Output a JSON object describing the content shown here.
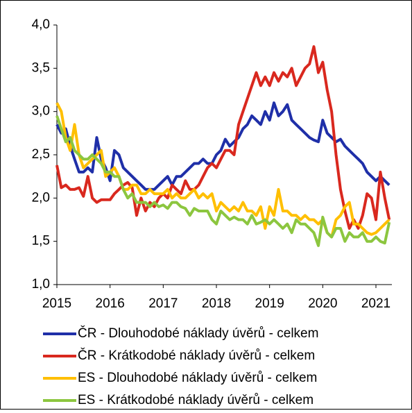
{
  "chart_data": {
    "type": "line",
    "x": [
      2015,
      2015.083,
      2015.167,
      2015.25,
      2015.333,
      2015.417,
      2015.5,
      2015.583,
      2015.667,
      2015.75,
      2015.833,
      2015.917,
      2016,
      2016.083,
      2016.167,
      2016.25,
      2016.333,
      2016.417,
      2016.5,
      2016.583,
      2016.667,
      2016.75,
      2016.833,
      2016.917,
      2017,
      2017.083,
      2017.167,
      2017.25,
      2017.333,
      2017.417,
      2017.5,
      2017.583,
      2017.667,
      2017.75,
      2017.833,
      2017.917,
      2018,
      2018.083,
      2018.167,
      2018.25,
      2018.333,
      2018.417,
      2018.5,
      2018.583,
      2018.667,
      2018.75,
      2018.833,
      2018.917,
      2019,
      2019.083,
      2019.167,
      2019.25,
      2019.333,
      2019.417,
      2019.5,
      2019.583,
      2019.667,
      2019.75,
      2019.833,
      2019.917,
      2020,
      2020.083,
      2020.167,
      2020.25,
      2020.333,
      2020.417,
      2020.5,
      2020.583,
      2020.667,
      2020.75,
      2020.833,
      2020.917,
      2021,
      2021.083,
      2021.167,
      2021.25
    ],
    "series": [
      {
        "name": "ČR - Dlouhodobé náklady úvěrů - celkem",
        "color": "#1f2fa8",
        "values": [
          2.85,
          2.75,
          2.8,
          2.6,
          2.45,
          2.3,
          2.3,
          2.35,
          2.3,
          2.7,
          2.45,
          2.35,
          2.2,
          2.55,
          2.5,
          2.35,
          2.3,
          2.25,
          2.2,
          2.15,
          2.1,
          2.1,
          2.1,
          2.15,
          2.2,
          2.25,
          2.15,
          2.25,
          2.25,
          2.3,
          2.35,
          2.4,
          2.4,
          2.45,
          2.4,
          2.4,
          2.5,
          2.55,
          2.68,
          2.6,
          2.65,
          2.7,
          2.8,
          2.85,
          2.95,
          2.9,
          2.85,
          3.0,
          2.9,
          3.1,
          2.95,
          3.0,
          3.08,
          2.9,
          2.85,
          2.8,
          2.75,
          2.7,
          2.67,
          2.65,
          2.9,
          2.75,
          2.7,
          2.65,
          2.68,
          2.6,
          2.55,
          2.5,
          2.45,
          2.4,
          2.3,
          2.25,
          2.2,
          2.25,
          2.2,
          2.15
        ]
      },
      {
        "name": "ČR - Krátkodobé náklady úvěrů - celkem",
        "color": "#d9281e",
        "values": [
          2.38,
          2.12,
          2.15,
          2.1,
          2.1,
          2.12,
          2.02,
          2.25,
          2.0,
          1.95,
          1.98,
          1.98,
          1.98,
          2.05,
          2.1,
          2.15,
          2.18,
          2.12,
          1.8,
          2.0,
          1.85,
          1.95,
          1.9,
          2.0,
          2.05,
          2.0,
          2.15,
          2.1,
          2.05,
          2.2,
          2.1,
          2.1,
          2.15,
          2.25,
          2.35,
          2.4,
          2.35,
          2.45,
          2.55,
          2.55,
          2.5,
          2.85,
          3.0,
          3.15,
          3.3,
          3.45,
          3.3,
          3.4,
          3.3,
          3.45,
          3.35,
          3.45,
          3.4,
          3.5,
          3.3,
          3.4,
          3.5,
          3.55,
          3.75,
          3.45,
          3.57,
          3.25,
          3.0,
          2.5,
          2.1,
          1.85,
          1.65,
          1.75,
          1.65,
          1.8,
          2.05,
          2.0,
          1.75,
          2.3,
          2.0,
          1.75
        ]
      },
      {
        "name": "ES - Dlouhodobé náklady úvěrů - celkem",
        "color": "#ffbf00",
        "values": [
          3.1,
          3.0,
          2.7,
          2.55,
          2.85,
          2.5,
          2.35,
          2.4,
          2.45,
          2.5,
          2.55,
          2.25,
          2.3,
          2.35,
          2.25,
          2.1,
          2.1,
          2.15,
          2.15,
          2.05,
          2.05,
          2.1,
          2.05,
          2.05,
          2.05,
          2.1,
          2.0,
          2.05,
          2.0,
          2.0,
          2.05,
          2.1,
          2.0,
          2.05,
          2.0,
          2.05,
          1.85,
          1.95,
          1.9,
          1.85,
          1.9,
          1.85,
          1.95,
          1.85,
          1.85,
          1.8,
          1.9,
          1.65,
          1.9,
          1.8,
          2.1,
          1.85,
          1.85,
          1.8,
          1.8,
          1.75,
          1.8,
          1.75,
          1.75,
          1.7,
          1.75,
          1.6,
          1.55,
          1.75,
          1.8,
          1.9,
          1.95,
          1.7,
          1.7,
          1.65,
          1.6,
          1.58,
          1.6,
          1.65,
          1.7,
          1.75
        ]
      },
      {
        "name": "ES - Krátkodobé náklady úvěrů - celkem",
        "color": "#8cc63f",
        "values": [
          2.95,
          2.8,
          2.65,
          2.7,
          2.55,
          2.5,
          2.45,
          2.45,
          2.5,
          2.45,
          2.4,
          2.3,
          2.3,
          2.25,
          2.25,
          2.1,
          2.0,
          2.05,
          1.95,
          1.95,
          1.95,
          1.9,
          1.95,
          1.9,
          1.92,
          1.88,
          1.95,
          1.95,
          1.9,
          1.88,
          1.8,
          1.88,
          1.85,
          1.85,
          1.85,
          1.75,
          1.7,
          1.85,
          1.8,
          1.75,
          1.78,
          1.75,
          1.75,
          1.7,
          1.8,
          1.7,
          1.72,
          1.75,
          1.7,
          1.75,
          1.7,
          1.65,
          1.7,
          1.6,
          1.75,
          1.7,
          1.7,
          1.65,
          1.6,
          1.45,
          1.78,
          1.6,
          1.55,
          1.65,
          1.65,
          1.5,
          1.6,
          1.55,
          1.55,
          1.6,
          1.5,
          1.5,
          1.55,
          1.5,
          1.48,
          1.72
        ]
      }
    ],
    "xlim": [
      2015,
      2021.3
    ],
    "xticks": [
      2015,
      2016,
      2017,
      2018,
      2019,
      2020,
      2021
    ],
    "ylim": [
      1,
      4
    ],
    "yticks": [
      {
        "value": 1,
        "label": "1,0"
      },
      {
        "value": 1.5,
        "label": "1,5"
      },
      {
        "value": 2,
        "label": "2,0"
      },
      {
        "value": 2.5,
        "label": "2,5"
      },
      {
        "value": 3,
        "label": "3,0"
      },
      {
        "value": 3.5,
        "label": "3,5"
      },
      {
        "value": 4,
        "label": "4,0"
      }
    ]
  }
}
